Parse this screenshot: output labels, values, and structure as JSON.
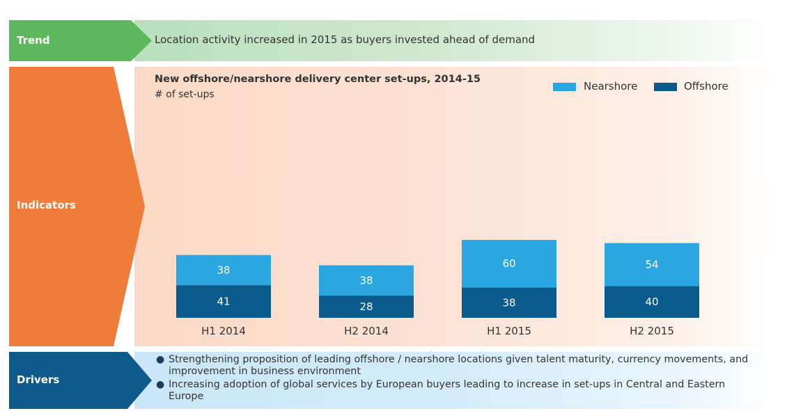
{
  "trend": {
    "label": "Trend",
    "text": "Location activity increased in 2015 as buyers invested ahead of demand"
  },
  "indicators": {
    "label": "Indicators"
  },
  "drivers": {
    "label": "Drivers",
    "items": [
      "Strengthening proposition of leading offshore / nearshore locations given talent maturity, currency movements, and improvement in business environment",
      "Increasing adoption of global services by European buyers leading to increase in set-ups in Central and Eastern Europe"
    ]
  },
  "colors": {
    "trend": "#5cb85c",
    "indicators": "#f07c3a",
    "drivers": "#0e5a8a",
    "nearshore": "#2aa7e0",
    "offshore": "#0a5a8c"
  },
  "chart_data": {
    "type": "bar",
    "stacked": true,
    "title": "New offshore/nearshore delivery center set-ups, 2014-15",
    "subtitle": "# of set-ups",
    "categories": [
      "H1 2014",
      "H2 2014",
      "H1 2015",
      "H2 2015"
    ],
    "series": [
      {
        "name": "Offshore",
        "values": [
          41,
          28,
          38,
          40
        ]
      },
      {
        "name": "Nearshore",
        "values": [
          38,
          38,
          60,
          54
        ]
      }
    ],
    "legend_position": "top-right",
    "grid": false
  }
}
